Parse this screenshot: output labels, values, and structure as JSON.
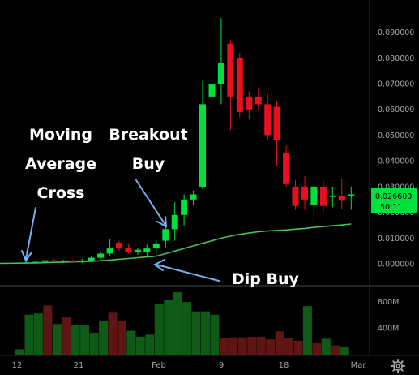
{
  "colors": {
    "background": "#000000",
    "up": "#00e13c",
    "down": "#e8101e",
    "volume_up": "#0e5a16",
    "volume_down": "#5e1614",
    "ma": "#4cc05a",
    "arrow": "#7aaef0",
    "axis_text": "#a6a6a6",
    "price_tag": "#00e13c"
  },
  "price_tag": {
    "price": "0.026600",
    "countdown": "50:11"
  },
  "annotations": {
    "moving_average_cross": [
      "Moving",
      "Average",
      "Cross"
    ],
    "breakout_buy": [
      "Breakout",
      "Buy"
    ],
    "dip_buy": "Dip Buy"
  },
  "icons": {
    "settings": "gear-icon"
  },
  "chart_data": {
    "type": "candlestick",
    "title": "",
    "x_ticks": [
      "12",
      "21",
      "Feb",
      "9",
      "18",
      "Mar"
    ],
    "y_ticks": [
      "0.090000",
      "0.080000",
      "0.070000",
      "0.060000",
      "0.050000",
      "0.040000",
      "0.030000",
      "0.020000",
      "0.010000",
      "0.000000"
    ],
    "ylim": [
      -0.002,
      0.096
    ],
    "volume_ticks": [
      "800M",
      "400M"
    ],
    "volume_ylim": [
      0,
      1000
    ],
    "volume_unit": "M",
    "grid": false,
    "candles": [
      {
        "o": 0.0002,
        "h": 0.0008,
        "l": 0.0,
        "c": 0.0006
      },
      {
        "o": 0.0006,
        "h": 0.0012,
        "l": 0.0002,
        "c": 0.0008
      },
      {
        "o": 0.0008,
        "h": 0.0018,
        "l": 0.0004,
        "c": 0.0014
      },
      {
        "o": 0.0014,
        "h": 0.002,
        "l": 0.0006,
        "c": 0.001
      },
      {
        "o": 0.001,
        "h": 0.0016,
        "l": 0.0004,
        "c": 0.0012
      },
      {
        "o": 0.0012,
        "h": 0.0016,
        "l": 0.0006,
        "c": 0.0008
      },
      {
        "o": 0.0008,
        "h": 0.002,
        "l": 0.0004,
        "c": 0.0012
      },
      {
        "o": 0.0012,
        "h": 0.003,
        "l": 0.0008,
        "c": 0.0024
      },
      {
        "o": 0.0024,
        "h": 0.0045,
        "l": 0.0018,
        "c": 0.004
      },
      {
        "o": 0.004,
        "h": 0.0095,
        "l": 0.0032,
        "c": 0.006
      },
      {
        "o": 0.0082,
        "h": 0.009,
        "l": 0.005,
        "c": 0.006
      },
      {
        "o": 0.006,
        "h": 0.008,
        "l": 0.004,
        "c": 0.0045
      },
      {
        "o": 0.0045,
        "h": 0.006,
        "l": 0.0035,
        "c": 0.0055
      },
      {
        "o": 0.0045,
        "h": 0.0075,
        "l": 0.003,
        "c": 0.006
      },
      {
        "o": 0.006,
        "h": 0.009,
        "l": 0.004,
        "c": 0.008
      },
      {
        "o": 0.009,
        "h": 0.015,
        "l": 0.0065,
        "c": 0.0135
      },
      {
        "o": 0.0135,
        "h": 0.024,
        "l": 0.009,
        "c": 0.019
      },
      {
        "o": 0.019,
        "h": 0.027,
        "l": 0.015,
        "c": 0.025
      },
      {
        "o": 0.025,
        "h": 0.0285,
        "l": 0.023,
        "c": 0.027
      },
      {
        "o": 0.03,
        "h": 0.071,
        "l": 0.029,
        "c": 0.062
      },
      {
        "o": 0.065,
        "h": 0.074,
        "l": 0.055,
        "c": 0.07
      },
      {
        "o": 0.07,
        "h": 0.0955,
        "l": 0.062,
        "c": 0.078
      },
      {
        "o": 0.0855,
        "h": 0.087,
        "l": 0.052,
        "c": 0.065
      },
      {
        "o": 0.08,
        "h": 0.082,
        "l": 0.057,
        "c": 0.059
      },
      {
        "o": 0.065,
        "h": 0.067,
        "l": 0.056,
        "c": 0.06
      },
      {
        "o": 0.065,
        "h": 0.068,
        "l": 0.06,
        "c": 0.062
      },
      {
        "o": 0.062,
        "h": 0.066,
        "l": 0.048,
        "c": 0.05
      },
      {
        "o": 0.061,
        "h": 0.063,
        "l": 0.038,
        "c": 0.048
      },
      {
        "o": 0.043,
        "h": 0.046,
        "l": 0.03,
        "c": 0.031
      },
      {
        "o": 0.03,
        "h": 0.0325,
        "l": 0.021,
        "c": 0.0225
      },
      {
        "o": 0.03,
        "h": 0.034,
        "l": 0.021,
        "c": 0.025
      },
      {
        "o": 0.023,
        "h": 0.032,
        "l": 0.016,
        "c": 0.03
      },
      {
        "o": 0.03,
        "h": 0.0325,
        "l": 0.02,
        "c": 0.0225
      },
      {
        "o": 0.026,
        "h": 0.03,
        "l": 0.022,
        "c": 0.0265
      },
      {
        "o": 0.0265,
        "h": 0.033,
        "l": 0.0215,
        "c": 0.0245
      },
      {
        "o": 0.0265,
        "h": 0.03,
        "l": 0.021,
        "c": 0.027
      }
    ],
    "ma_series": [
      0.0002,
      0.0004,
      0.0005,
      0.0006,
      0.0007,
      0.0008,
      0.0009,
      0.001,
      0.0012,
      0.0015,
      0.0018,
      0.0021,
      0.0024,
      0.0027,
      0.003,
      0.004,
      0.005,
      0.006,
      0.007,
      0.008,
      0.009,
      0.01,
      0.0108,
      0.0115,
      0.012,
      0.0125,
      0.0128,
      0.013,
      0.0132,
      0.0135,
      0.0138,
      0.0142,
      0.0145,
      0.0148,
      0.0151,
      0.0155
    ],
    "volume": [
      80,
      600,
      620,
      740,
      460,
      560,
      440,
      440,
      330,
      510,
      630,
      500,
      360,
      270,
      300,
      760,
      820,
      940,
      790,
      650,
      650,
      600,
      250,
      260,
      260,
      270,
      270,
      230,
      350,
      250,
      210,
      730,
      180,
      240,
      140,
      110
    ]
  }
}
